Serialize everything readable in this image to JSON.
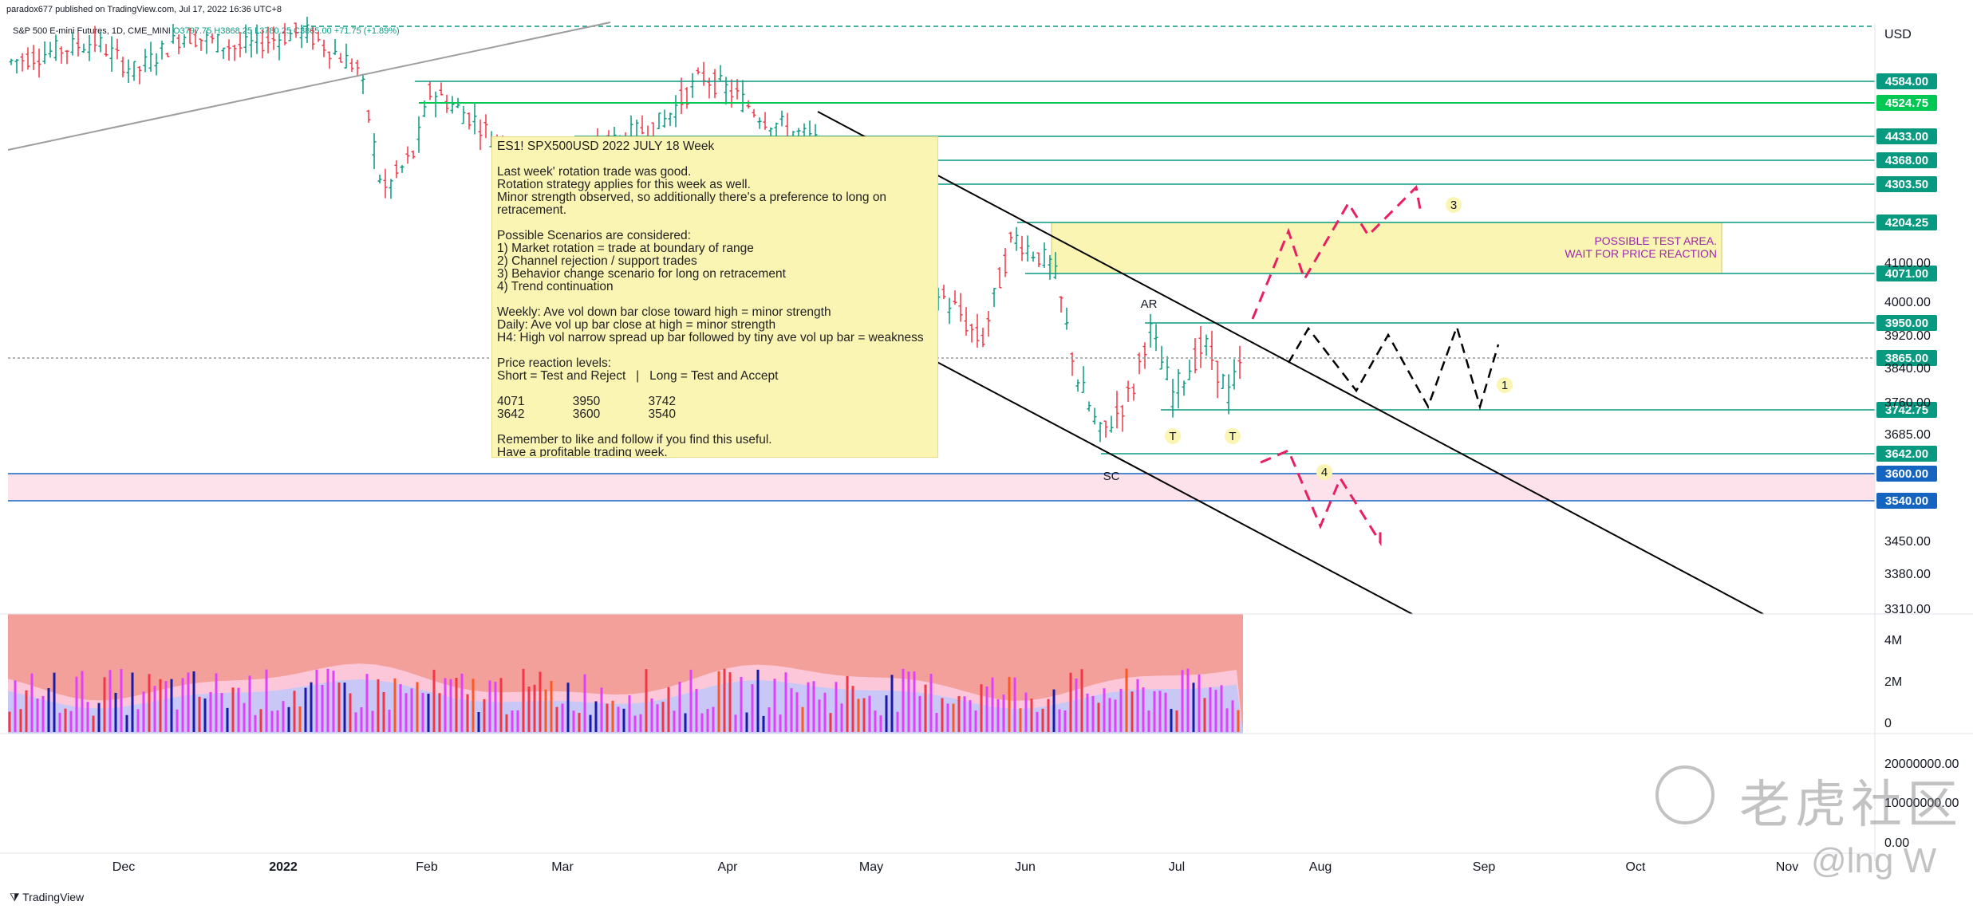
{
  "header": {
    "published": "paradox677 published on TradingView.com, Jul 17, 2022 16:36 UTC+8",
    "symbol": "S&P 500 E-mini Futures, 1D, CME_MINI",
    "ohlc": "O3797.75 H3868.25 L3780.25 C3865.00 +71.75 (+1.89%)"
  },
  "currency": "USD",
  "footer": {
    "brand": "TradingView"
  },
  "watermark": {
    "text": "老虎社区",
    "handle": "@lng W"
  },
  "note": {
    "text": "ES1! SPX500USD 2022 JULY 18 Week\n\nLast week' rotation trade was good.\nRotation strategy applies for this week as well.\nMinor strength observed, so additionally there's a preference to long on\nretracement.\n\nPossible Scenarios are considered:\n1) Market rotation = trade at boundary of range\n2) Channel rejection / support trades\n3) Behavior change scenario for long on retracement\n4) Trend continuation\n\nWeekly: Ave vol down bar close toward high = minor strength\nDaily: Ave vol up bar close at high = minor strength\nH4: High vol narrow spread up bar followed by tiny ave vol up bar = weakness\n\nPrice reaction levels:\nShort = Test and Reject   |   Long = Test and Accept\n\n4071              3950              3742\n3642              3600              3540\n\nRemember to like and follow if you find this useful.\nHave a profitable trading week."
  },
  "chart_data": {
    "type": "candlestick",
    "y_axis": {
      "min": 3310,
      "max": 4750,
      "ticks": [
        3310,
        3380,
        3450,
        3685,
        3760,
        3840,
        3920,
        4000,
        4100
      ]
    },
    "x_axis": {
      "ticks": [
        "Dec",
        "2022",
        "Feb",
        "Mar",
        "Apr",
        "May",
        "Jun",
        "Jul",
        "Aug",
        "Sep",
        "Oct",
        "Nov"
      ]
    },
    "price_levels": [
      {
        "value": 4584.0,
        "color": "#089981"
      },
      {
        "value": 4524.75,
        "color": "#00c853"
      },
      {
        "value": 4433.0,
        "color": "#089981"
      },
      {
        "value": 4368.0,
        "color": "#089981"
      },
      {
        "value": 4303.5,
        "color": "#089981"
      },
      {
        "value": 4204.25,
        "color": "#089981"
      },
      {
        "value": 4071.0,
        "color": "#089981"
      },
      {
        "value": 3950.0,
        "color": "#089981"
      },
      {
        "value": 3865.0,
        "color": "#089981"
      },
      {
        "value": 3742.75,
        "color": "#089981"
      },
      {
        "value": 3642.0,
        "color": "#089981"
      },
      {
        "value": 3600.0,
        "color": "#1565c0"
      },
      {
        "value": 3540.0,
        "color": "#1565c0"
      }
    ],
    "zone_text": [
      "POSSIBLE TEST AREA.",
      "WAIT FOR PRICE REACTION"
    ],
    "annotations": [
      "AR",
      "SC",
      "T",
      "T",
      "1",
      "3",
      "4"
    ],
    "volume_axis": {
      "ticks": [
        "4M",
        "2M",
        "0"
      ]
    },
    "lower_axis": {
      "ticks": [
        "20000000.00",
        "10000000.00",
        "0.00"
      ]
    },
    "colors": {
      "up": "#089981",
      "down": "#f23645",
      "zone": "#fbf5b3",
      "band": "#fde2ec"
    }
  }
}
